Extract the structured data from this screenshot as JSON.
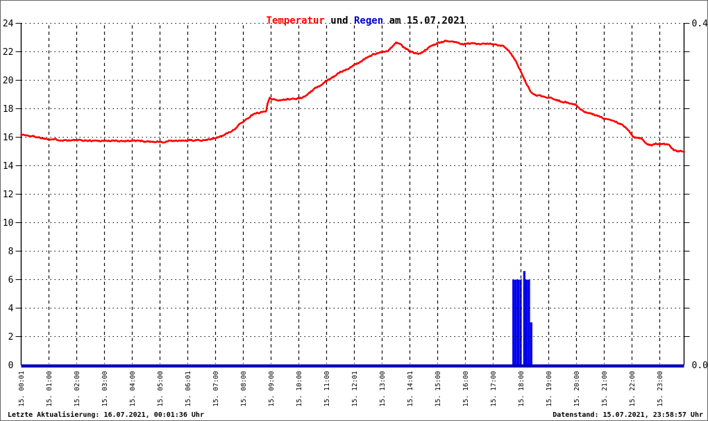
{
  "title": {
    "temperatur": "Temperatur",
    "und": " und ",
    "regen": "Regen",
    "rest": " am 15.07.2021"
  },
  "footer": {
    "left": "Letzte Aktualisierung: 16.07.2021, 00:01:36 Uhr",
    "right": "Datenstand: 15.07.2021, 23:58:57 Uhr"
  },
  "colors": {
    "temperature_line": "#ff0000",
    "rain_bar": "#0000ee",
    "rain_baseline": "#0000bb",
    "title_regen": "#0000cc",
    "grid": "#000000",
    "axis": "#000000",
    "background": "#ffffff"
  },
  "chart_data": {
    "type": "line",
    "title": "Temperatur und Regen am 15.07.2021",
    "grid": {
      "horizontal": "dotted",
      "vertical": "dashed"
    },
    "x_axis": {
      "hours_span": [
        0,
        23.875
      ],
      "tick_labels": [
        "15. 00:01",
        "15. 01:00",
        "15. 02:00",
        "15. 03:00",
        "15. 04:00",
        "15. 05:00",
        "15. 06:01",
        "15. 07:00",
        "15. 08:00",
        "15. 09:00",
        "15. 10:00",
        "15. 11:00",
        "15. 12:01",
        "15. 13:00",
        "15. 14:01",
        "15. 15:00",
        "15. 16:00",
        "15. 17:00",
        "15. 18:00",
        "15. 19:00",
        "15. 20:00",
        "15. 21:00",
        "15. 22:00",
        "15. 23:00"
      ]
    },
    "y_left_axis": {
      "series": "Temperatur",
      "min": 0,
      "max": 24,
      "tick_step": 2,
      "tick_labels": [
        "24",
        "22",
        "20",
        "18",
        "16",
        "14",
        "12",
        "10",
        "8",
        "6",
        "4",
        "2",
        "0"
      ]
    },
    "y_right_axis": {
      "series": "Regen",
      "min": 0.0,
      "max": 0.4,
      "tick_labels_shown": [
        {
          "value": 0.4,
          "label": "0.4"
        },
        {
          "value": 0.0,
          "label": "0.0"
        }
      ]
    },
    "series": [
      {
        "name": "Temperatur",
        "type": "line",
        "axis": "left",
        "color": "#ff0000",
        "points": [
          [
            0,
            16.2
          ],
          [
            0.25,
            16.1
          ],
          [
            0.5,
            16.05
          ],
          [
            0.8,
            15.92
          ],
          [
            1,
            15.88
          ],
          [
            1.5,
            15.8
          ],
          [
            2,
            15.78
          ],
          [
            2.5,
            15.76
          ],
          [
            3,
            15.75
          ],
          [
            3.5,
            15.74
          ],
          [
            4,
            15.76
          ],
          [
            4.6,
            15.7
          ],
          [
            5,
            15.68
          ],
          [
            5.12,
            15.62
          ],
          [
            5.3,
            15.72
          ],
          [
            6,
            15.76
          ],
          [
            6.5,
            15.8
          ],
          [
            6.9,
            15.88
          ],
          [
            7.1,
            16.0
          ],
          [
            7.3,
            16.15
          ],
          [
            7.5,
            16.35
          ],
          [
            7.7,
            16.6
          ],
          [
            7.9,
            16.95
          ],
          [
            8.1,
            17.25
          ],
          [
            8.3,
            17.55
          ],
          [
            8.5,
            17.7
          ],
          [
            8.75,
            17.8
          ],
          [
            8.82,
            17.82
          ],
          [
            8.88,
            18.4
          ],
          [
            8.95,
            18.78
          ],
          [
            9.1,
            18.65
          ],
          [
            9.3,
            18.6
          ],
          [
            9.6,
            18.66
          ],
          [
            9.9,
            18.7
          ],
          [
            10.1,
            18.75
          ],
          [
            10.3,
            18.95
          ],
          [
            10.5,
            19.3
          ],
          [
            10.75,
            19.6
          ],
          [
            11,
            20.0
          ],
          [
            11.25,
            20.25
          ],
          [
            11.5,
            20.55
          ],
          [
            11.75,
            20.8
          ],
          [
            12,
            21.05
          ],
          [
            12.25,
            21.35
          ],
          [
            12.5,
            21.65
          ],
          [
            12.75,
            21.85
          ],
          [
            13,
            22.0
          ],
          [
            13.2,
            22.0
          ],
          [
            13.35,
            22.35
          ],
          [
            13.5,
            22.62
          ],
          [
            13.6,
            22.6
          ],
          [
            13.75,
            22.35
          ],
          [
            13.95,
            22.1
          ],
          [
            14.15,
            21.92
          ],
          [
            14.35,
            21.9
          ],
          [
            14.55,
            22.1
          ],
          [
            14.75,
            22.4
          ],
          [
            15,
            22.6
          ],
          [
            15.25,
            22.72
          ],
          [
            15.45,
            22.78
          ],
          [
            15.7,
            22.65
          ],
          [
            15.95,
            22.55
          ],
          [
            16.2,
            22.6
          ],
          [
            16.5,
            22.5
          ],
          [
            16.8,
            22.55
          ],
          [
            17.05,
            22.5
          ],
          [
            17.3,
            22.45
          ],
          [
            17.45,
            22.3
          ],
          [
            17.6,
            22.0
          ],
          [
            17.8,
            21.4
          ],
          [
            18,
            20.6
          ],
          [
            18.2,
            19.7
          ],
          [
            18.4,
            19.05
          ],
          [
            18.55,
            18.92
          ],
          [
            18.8,
            18.85
          ],
          [
            19.1,
            18.72
          ],
          [
            19.4,
            18.55
          ],
          [
            19.7,
            18.42
          ],
          [
            19.95,
            18.3
          ],
          [
            20.15,
            17.95
          ],
          [
            20.35,
            17.72
          ],
          [
            20.6,
            17.6
          ],
          [
            20.85,
            17.42
          ],
          [
            21.1,
            17.28
          ],
          [
            21.4,
            17.1
          ],
          [
            21.7,
            16.8
          ],
          [
            21.9,
            16.4
          ],
          [
            22.02,
            16.05
          ],
          [
            22.15,
            15.95
          ],
          [
            22.35,
            15.93
          ],
          [
            22.5,
            15.6
          ],
          [
            22.7,
            15.4
          ],
          [
            22.85,
            15.55
          ],
          [
            23.15,
            15.55
          ],
          [
            23.35,
            15.42
          ],
          [
            23.5,
            15.08
          ],
          [
            23.65,
            15.0
          ],
          [
            23.88,
            15.02
          ]
        ]
      },
      {
        "name": "Regen",
        "type": "bar",
        "axis": "right",
        "unit": "mm",
        "color": "#0000ee",
        "baseline_color": "#0000bb",
        "bar_width_hours": 0.083,
        "bars": [
          {
            "t": 17.69,
            "mm": 0.1
          },
          {
            "t": 17.775,
            "mm": 0.1
          },
          {
            "t": 17.86,
            "mm": 0.1
          },
          {
            "t": 17.945,
            "mm": 0.1
          },
          {
            "t": 18.08,
            "mm": 0.11
          },
          {
            "t": 18.163,
            "mm": 0.1
          },
          {
            "t": 18.246,
            "mm": 0.1
          },
          {
            "t": 18.329,
            "mm": 0.05
          }
        ]
      }
    ]
  }
}
